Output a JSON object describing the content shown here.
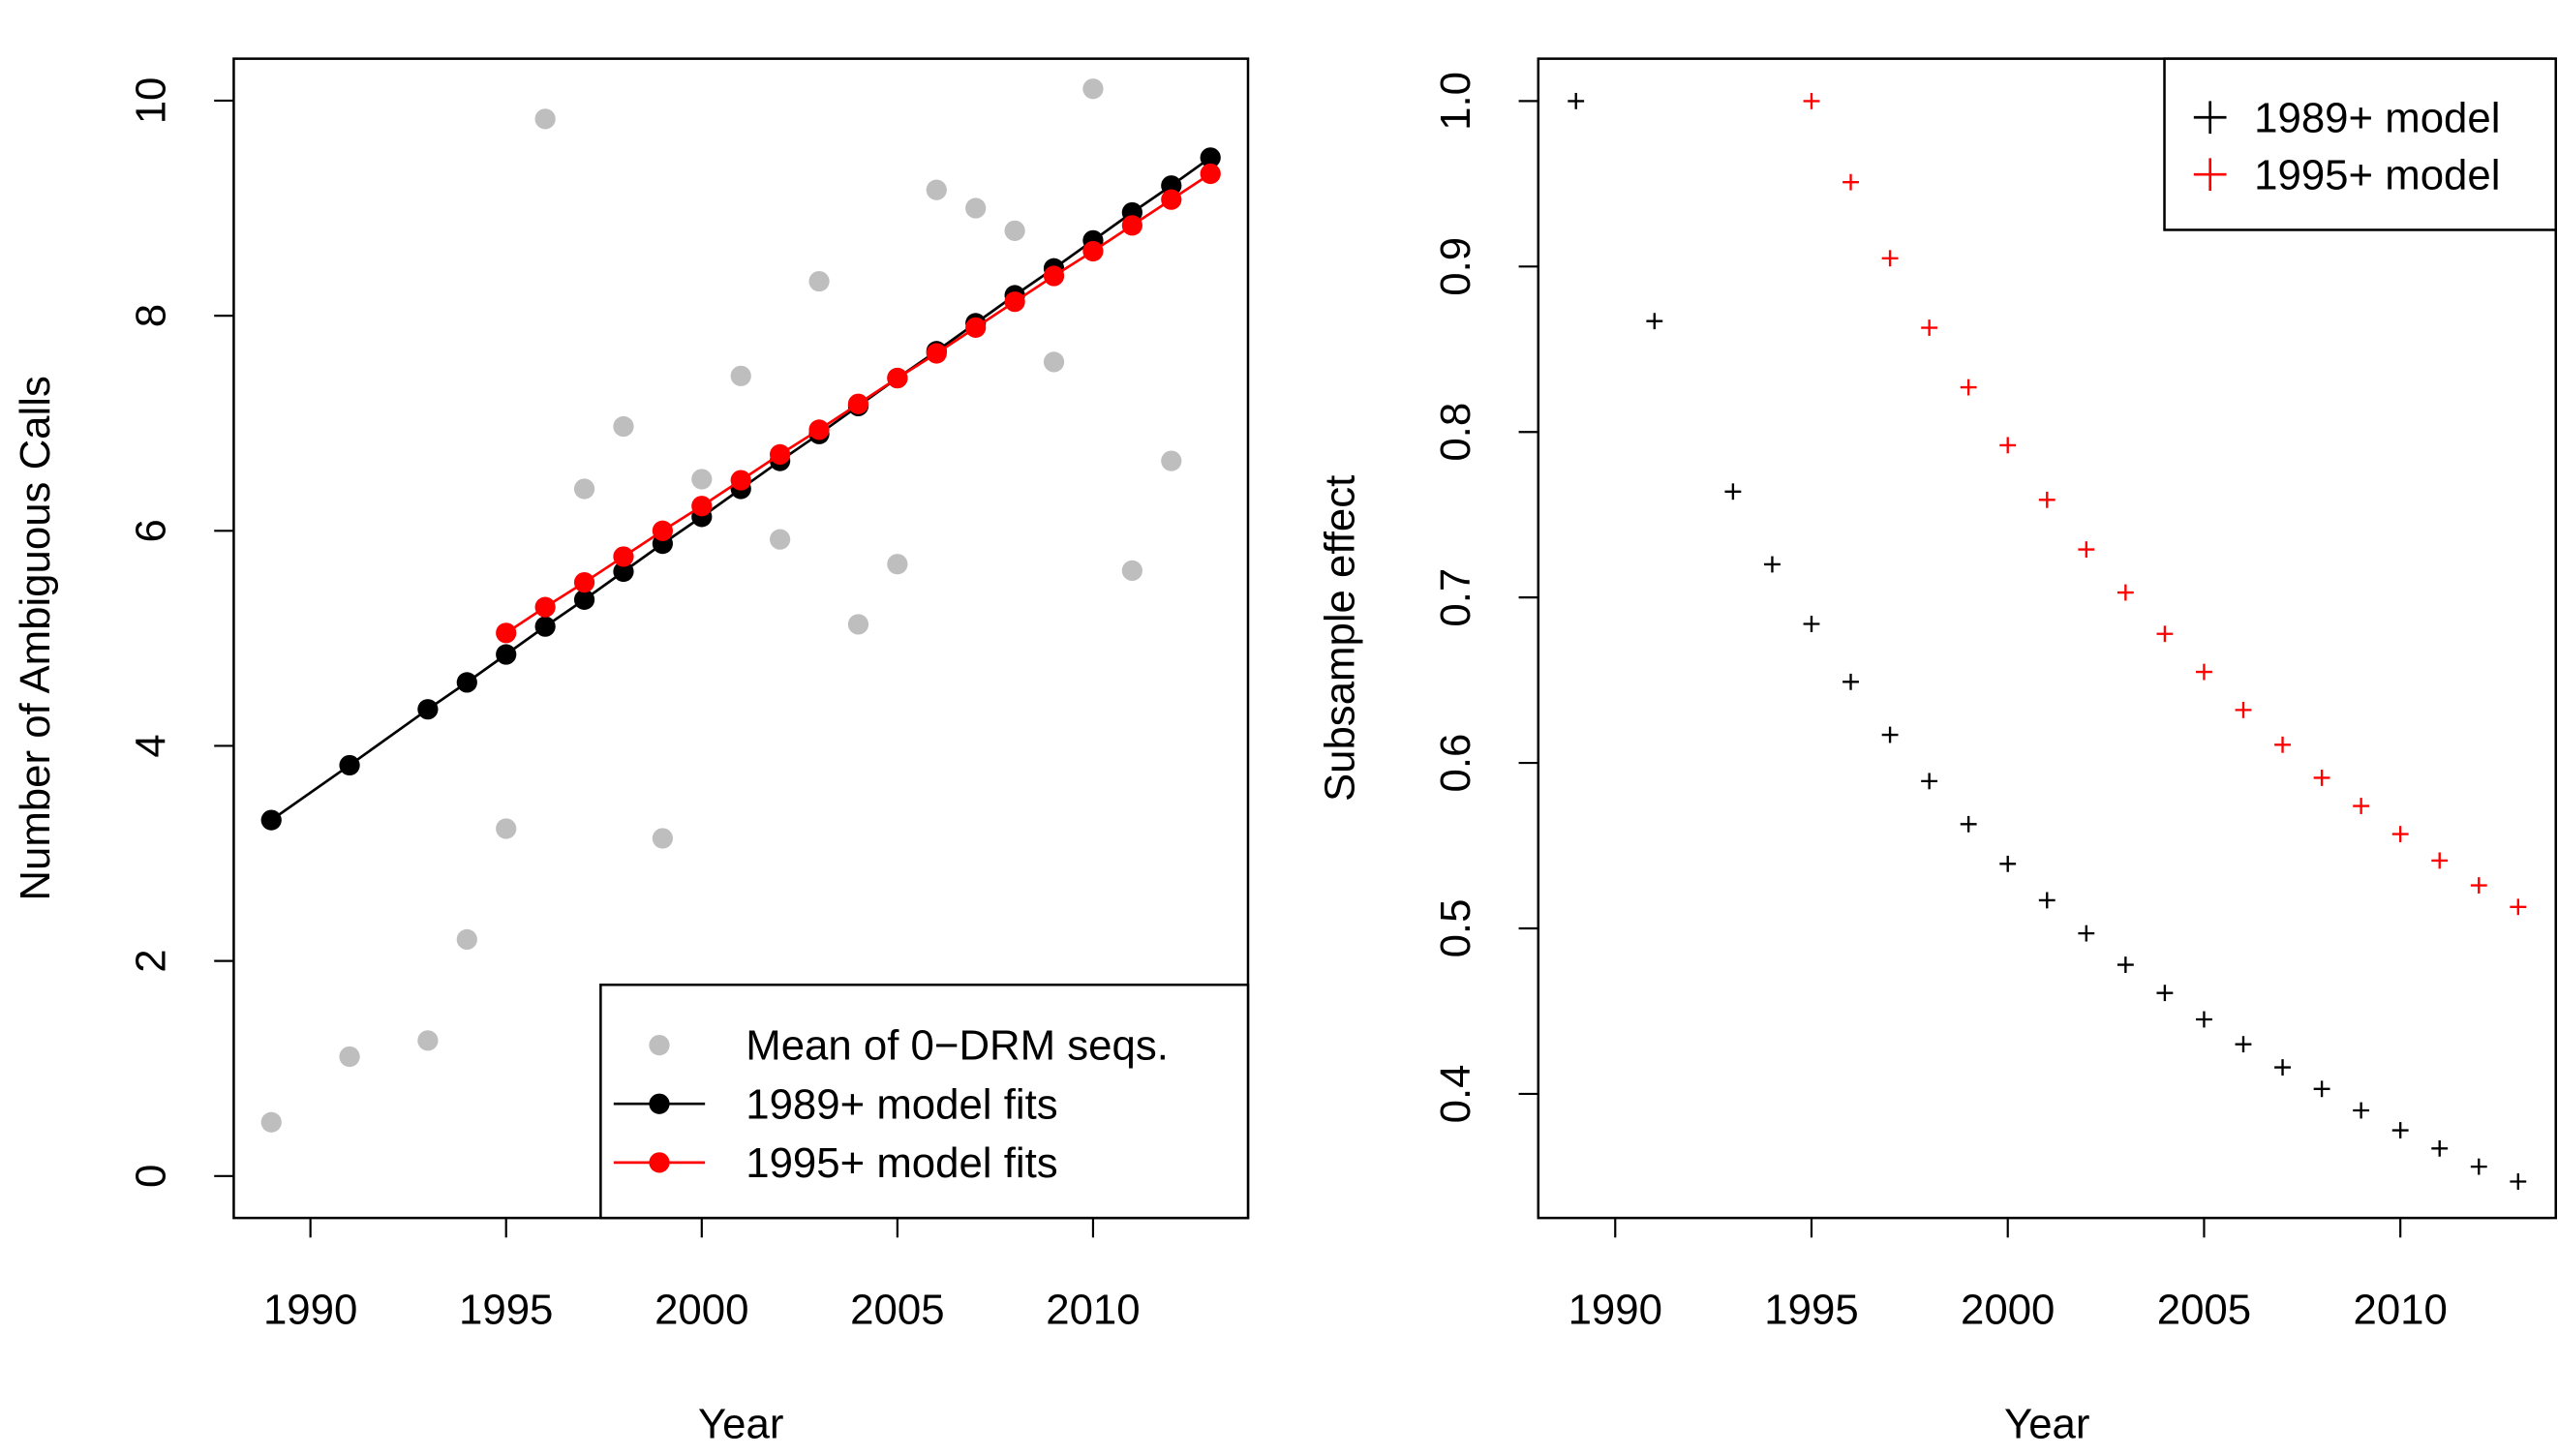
{
  "chart_data": [
    {
      "type": "scatter",
      "xlabel": "Year",
      "ylabel": "Number of Ambiguous Calls",
      "xlim": [
        1988.04,
        2013.96
      ],
      "ylim": [
        -0.39,
        10.39
      ],
      "xticks": [
        1990,
        1995,
        2000,
        2005,
        2010
      ],
      "yticks": [
        0,
        2,
        4,
        6,
        8,
        10
      ],
      "grid": false,
      "legend_position": "bottom-right",
      "series": [
        {
          "name": "Mean of 0−DRM seqs.",
          "style": "points",
          "color": "#bebebe",
          "x": [
            1989,
            1991,
            1993,
            1994,
            1995,
            1996,
            1997,
            1998,
            1999,
            2000,
            2001,
            2002,
            2003,
            2004,
            2005,
            2006,
            2007,
            2008,
            2009,
            2010,
            2011,
            2012
          ],
          "y": [
            0.5,
            1.11,
            1.26,
            2.2,
            3.23,
            9.83,
            6.39,
            6.97,
            3.14,
            6.48,
            7.44,
            5.92,
            8.32,
            5.13,
            5.69,
            9.17,
            9.0,
            8.79,
            7.57,
            10.11,
            5.63,
            6.65
          ]
        },
        {
          "name": "1989+ model fits",
          "style": "line+points",
          "color": "#000000",
          "x": [
            1989,
            1991,
            1993,
            1994,
            1995,
            1996,
            1997,
            1998,
            1999,
            2000,
            2001,
            2002,
            2003,
            2004,
            2005,
            2006,
            2007,
            2008,
            2009,
            2010,
            2011,
            2012,
            2013
          ],
          "y": [
            3.31,
            3.82,
            4.34,
            4.59,
            4.85,
            5.11,
            5.36,
            5.62,
            5.88,
            6.13,
            6.39,
            6.65,
            6.9,
            7.16,
            7.42,
            7.67,
            7.93,
            8.19,
            8.44,
            8.7,
            8.96,
            9.21,
            9.47
          ]
        },
        {
          "name": "1995+ model fits",
          "style": "line+points",
          "color": "#ff0000",
          "x": [
            1995,
            1996,
            1997,
            1998,
            1999,
            2000,
            2001,
            2002,
            2003,
            2004,
            2005,
            2006,
            2007,
            2008,
            2009,
            2010,
            2011,
            2012,
            2013
          ],
          "y": [
            5.05,
            5.29,
            5.52,
            5.76,
            6.0,
            6.23,
            6.47,
            6.71,
            6.94,
            7.18,
            7.42,
            7.65,
            7.89,
            8.13,
            8.37,
            8.6,
            8.84,
            9.08,
            9.32
          ]
        }
      ]
    },
    {
      "type": "scatter",
      "xlabel": "Year",
      "ylabel": "Subsample effect",
      "xlim": [
        1988.04,
        2013.96
      ],
      "ylim": [
        0.325,
        1.0256
      ],
      "xticks": [
        1990,
        1995,
        2000,
        2005,
        2010
      ],
      "yticks": [
        0.4,
        0.5,
        0.6,
        0.7,
        0.8,
        0.9,
        1.0
      ],
      "ytick_labels": [
        "0.4",
        "0.5",
        "0.6",
        "0.7",
        "0.8",
        "0.9",
        "1.0"
      ],
      "grid": false,
      "legend_position": "top-right",
      "series": [
        {
          "name": "1989+ model",
          "style": "plus",
          "color": "#000000",
          "x": [
            1989,
            1991,
            1993,
            1994,
            1995,
            1996,
            1997,
            1998,
            1999,
            2000,
            2001,
            2002,
            2003,
            2004,
            2005,
            2006,
            2007,
            2008,
            2009,
            2010,
            2011,
            2012,
            2013
          ],
          "y": [
            1.0,
            0.867,
            0.764,
            0.72,
            0.684,
            0.649,
            0.617,
            0.589,
            0.563,
            0.539,
            0.517,
            0.497,
            0.478,
            0.461,
            0.445,
            0.43,
            0.416,
            0.403,
            0.39,
            0.378,
            0.367,
            0.356,
            0.347
          ]
        },
        {
          "name": "1995+ model",
          "style": "plus",
          "color": "#ff0000",
          "x": [
            1995,
            1996,
            1997,
            1998,
            1999,
            2000,
            2001,
            2002,
            2003,
            2004,
            2005,
            2006,
            2007,
            2008,
            2009,
            2010,
            2011,
            2012,
            2013
          ],
          "y": [
            1.0,
            0.951,
            0.905,
            0.863,
            0.827,
            0.792,
            0.759,
            0.729,
            0.703,
            0.678,
            0.655,
            0.632,
            0.611,
            0.591,
            0.574,
            0.557,
            0.541,
            0.526,
            0.513
          ]
        }
      ]
    }
  ]
}
